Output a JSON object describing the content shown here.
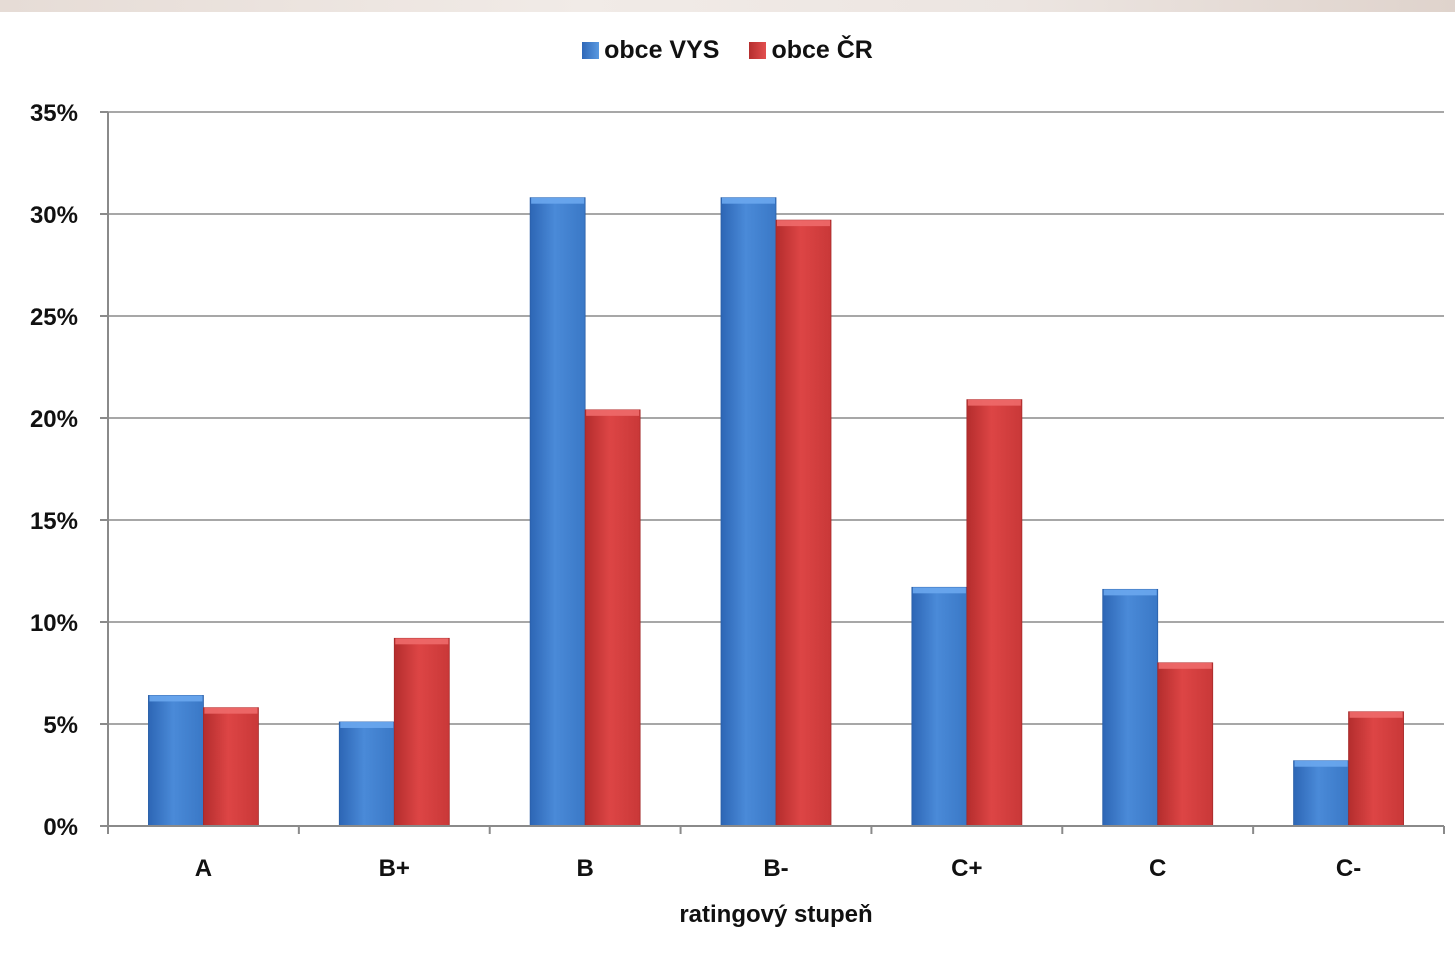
{
  "chart_data": {
    "type": "bar",
    "categories": [
      "A",
      "B+",
      "B",
      "B-",
      "C+",
      "C",
      "C-"
    ],
    "series": [
      {
        "name": "obce VYS",
        "values": [
          6.4,
          5.1,
          30.8,
          30.8,
          11.7,
          11.6,
          3.2
        ],
        "color": "#3f7fd0"
      },
      {
        "name": "obce ČR",
        "values": [
          5.8,
          9.2,
          20.4,
          29.7,
          20.9,
          8.0,
          5.6
        ],
        "color": "#d23b3b"
      }
    ],
    "ylim": [
      0,
      35
    ],
    "yticks": [
      "0%",
      "5%",
      "10%",
      "15%",
      "20%",
      "25%",
      "30%",
      "35%"
    ],
    "xlabel": "ratingový stupeň",
    "ylabel": "",
    "grid": true,
    "legend_position": "top"
  }
}
